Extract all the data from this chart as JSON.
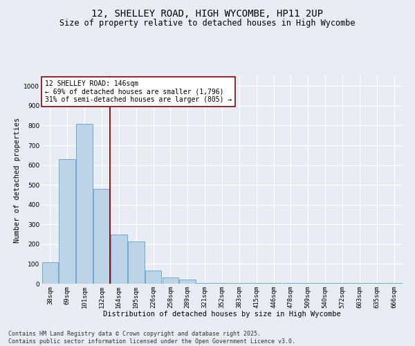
{
  "title_line1": "12, SHELLEY ROAD, HIGH WYCOMBE, HP11 2UP",
  "title_line2": "Size of property relative to detached houses in High Wycombe",
  "xlabel": "Distribution of detached houses by size in High Wycombe",
  "ylabel": "Number of detached properties",
  "categories": [
    "38sqm",
    "69sqm",
    "101sqm",
    "132sqm",
    "164sqm",
    "195sqm",
    "226sqm",
    "258sqm",
    "289sqm",
    "321sqm",
    "352sqm",
    "383sqm",
    "415sqm",
    "446sqm",
    "478sqm",
    "509sqm",
    "540sqm",
    "572sqm",
    "603sqm",
    "635sqm",
    "666sqm"
  ],
  "values": [
    110,
    630,
    810,
    480,
    250,
    215,
    65,
    30,
    20,
    5,
    5,
    5,
    5,
    5,
    5,
    5,
    5,
    5,
    5,
    5,
    5
  ],
  "bar_color": "#bdd4e8",
  "bar_edge_color": "#6fa8d0",
  "bg_color": "#e8edf4",
  "grid_color": "#ffffff",
  "vline_x": 3.5,
  "vline_color": "#8b0000",
  "annotation_text": "12 SHELLEY ROAD: 146sqm\n← 69% of detached houses are smaller (1,796)\n31% of semi-detached houses are larger (805) →",
  "annotation_box_color": "#ffffff",
  "annotation_box_edge": "#8b0000",
  "footnote": "Contains HM Land Registry data © Crown copyright and database right 2025.\nContains public sector information licensed under the Open Government Licence v3.0.",
  "ylim": [
    0,
    1050
  ],
  "yticks": [
    0,
    100,
    200,
    300,
    400,
    500,
    600,
    700,
    800,
    900,
    1000
  ],
  "title_fontsize": 10,
  "subtitle_fontsize": 8.5,
  "label_fontsize": 7.5,
  "tick_fontsize": 6.5,
  "annotation_fontsize": 7,
  "footnote_fontsize": 6
}
